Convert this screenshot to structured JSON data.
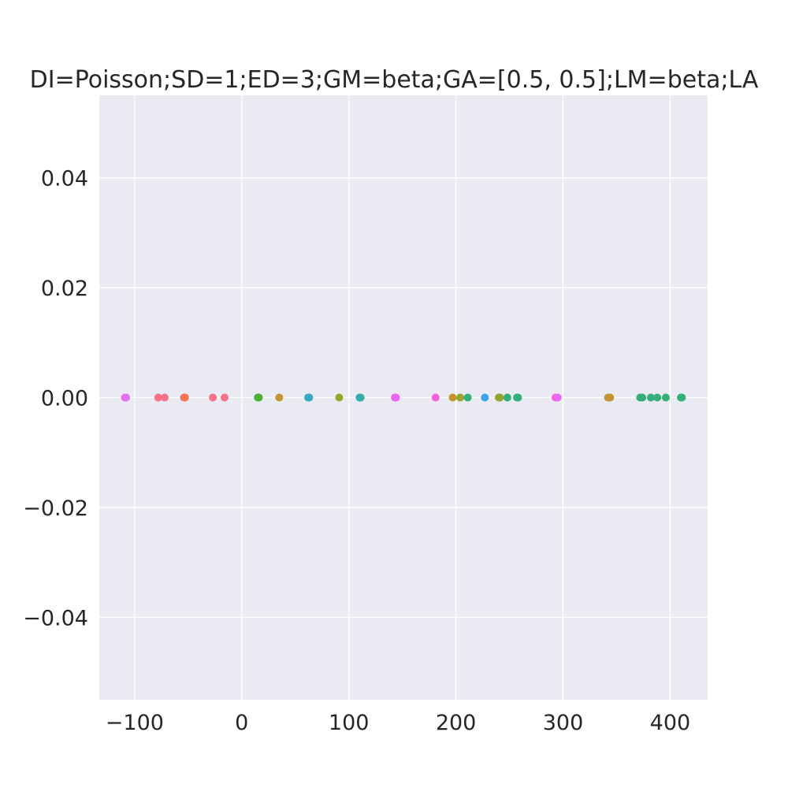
{
  "chart_data": {
    "type": "scatter",
    "title": "DI=Poisson;SD=1;ED=3;GM=beta;GA=[0.5, 0.5];LM=beta;LA",
    "xlabel": "",
    "ylabel": "",
    "xlim": [
      -133,
      435
    ],
    "ylim": [
      -0.055,
      0.055
    ],
    "x_ticks": [
      -100,
      0,
      100,
      200,
      300,
      400
    ],
    "y_ticks": [
      -0.04,
      -0.02,
      0.0,
      0.02,
      0.04
    ],
    "x_tick_labels": [
      "−100",
      "0",
      "100",
      "200",
      "300",
      "400"
    ],
    "y_tick_labels": [
      "−0.04",
      "−0.02",
      "0.00",
      "0.02",
      "0.04"
    ],
    "grid": true,
    "legend": "none",
    "background_color": "#eaeaf2",
    "grid_color": "#ffffff",
    "points": [
      {
        "x": -109,
        "y": 0,
        "color": "#f561dd"
      },
      {
        "x": -108,
        "y": 0,
        "color": "#f561dd"
      },
      {
        "x": -108,
        "y": 0,
        "color": "#dc71fa"
      },
      {
        "x": -78,
        "y": 0,
        "color": "#f77189"
      },
      {
        "x": -72,
        "y": 0,
        "color": "#f77189"
      },
      {
        "x": -54,
        "y": 0,
        "color": "#f77189"
      },
      {
        "x": -53,
        "y": 0,
        "color": "#f7754f"
      },
      {
        "x": -27,
        "y": 0,
        "color": "#f77189"
      },
      {
        "x": -16,
        "y": 0,
        "color": "#f77189"
      },
      {
        "x": 15,
        "y": 0,
        "color": "#33b07a"
      },
      {
        "x": 16,
        "y": 0,
        "color": "#50b131"
      },
      {
        "x": 35,
        "y": 0,
        "color": "#c39532"
      },
      {
        "x": 62,
        "y": 0,
        "color": "#36ada4"
      },
      {
        "x": 63,
        "y": 0,
        "color": "#38a9c5"
      },
      {
        "x": 91,
        "y": 0,
        "color": "#97a431"
      },
      {
        "x": 110,
        "y": 0,
        "color": "#38a9c5"
      },
      {
        "x": 111,
        "y": 0,
        "color": "#36ada4"
      },
      {
        "x": 143,
        "y": 0,
        "color": "#f561dd"
      },
      {
        "x": 144,
        "y": 0,
        "color": "#e866f4"
      },
      {
        "x": 181,
        "y": 0,
        "color": "#f561dd"
      },
      {
        "x": 197,
        "y": 0,
        "color": "#c39532"
      },
      {
        "x": 204,
        "y": 0,
        "color": "#97a431"
      },
      {
        "x": 211,
        "y": 0,
        "color": "#33b07a"
      },
      {
        "x": 227,
        "y": 0,
        "color": "#3ba3ec"
      },
      {
        "x": 240,
        "y": 0,
        "color": "#97a431"
      },
      {
        "x": 241,
        "y": 0,
        "color": "#97a431"
      },
      {
        "x": 248,
        "y": 0,
        "color": "#33b07a"
      },
      {
        "x": 257,
        "y": 0,
        "color": "#33b07a"
      },
      {
        "x": 258,
        "y": 0,
        "color": "#33b07a"
      },
      {
        "x": 293,
        "y": 0,
        "color": "#f561dd"
      },
      {
        "x": 295,
        "y": 0,
        "color": "#e866f4"
      },
      {
        "x": 342,
        "y": 0,
        "color": "#c39532"
      },
      {
        "x": 344,
        "y": 0,
        "color": "#c39532"
      },
      {
        "x": 372,
        "y": 0,
        "color": "#33b07a"
      },
      {
        "x": 374,
        "y": 0,
        "color": "#33b07a"
      },
      {
        "x": 382,
        "y": 0,
        "color": "#33b07a"
      },
      {
        "x": 388,
        "y": 0,
        "color": "#33b07a"
      },
      {
        "x": 396,
        "y": 0,
        "color": "#33b07a"
      },
      {
        "x": 410,
        "y": 0,
        "color": "#33b07a"
      },
      {
        "x": 411,
        "y": 0,
        "color": "#33b07a"
      }
    ]
  }
}
